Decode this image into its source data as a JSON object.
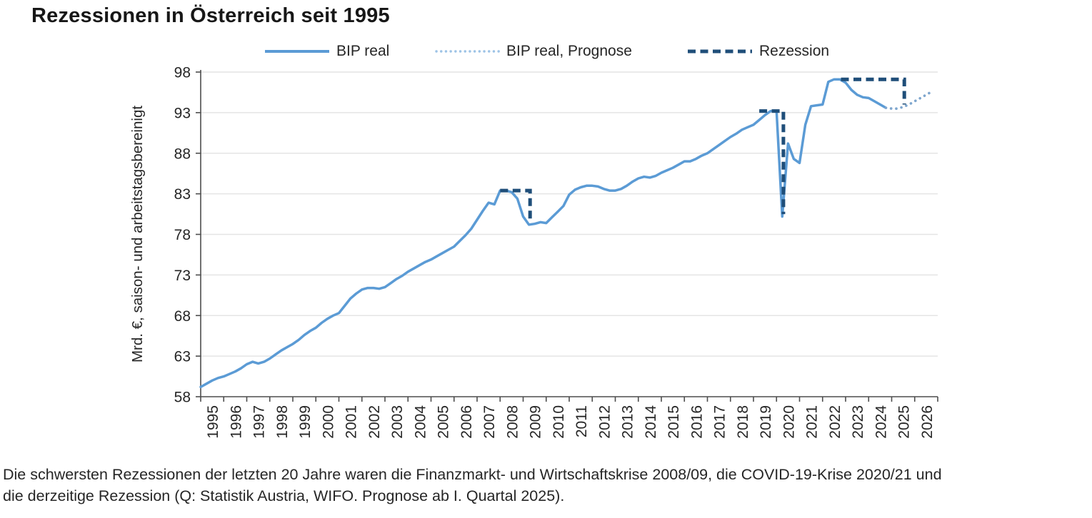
{
  "title": "Rezessionen in Österreich seit 1995",
  "legend": [
    {
      "label": "BIP real",
      "style": "solid",
      "color": "#5B9BD5"
    },
    {
      "label": "BIP real, Prognose",
      "style": "dotted",
      "color": "#7EA6CE"
    },
    {
      "label": "Rezession",
      "style": "dashed",
      "color": "#1F4E79"
    }
  ],
  "caption": {
    "line1": "Die schwersten Rezessionen der letzten 20 Jahre waren die Finanzmarkt- und Wirtschaftskrise 2008/09, die COVID-19-Krise 2020/21 und",
    "line2": "die derzeitige Rezession (Q: Statistik Austria, WIFO. Prognose ab I. Quartal 2025)."
  },
  "colors": {
    "bip_real": "#5B9BD5",
    "prognose": "#7EA6CE",
    "rezession": "#1F4E79",
    "grid": "#E4E4E4",
    "axis": "#4d4d4d",
    "text": "#262626"
  },
  "chart_data": {
    "type": "line",
    "title": "Rezessionen in Österreich seit 1995",
    "ylabel": "Mrd. €, saison- und arbeitstagsbereinigt",
    "xlabel": "",
    "ylim": [
      58,
      98
    ],
    "xlim": [
      1995,
      2027
    ],
    "grid": "horizontal",
    "legend_position": "top",
    "y_ticks": [
      58,
      63,
      68,
      73,
      78,
      83,
      88,
      93,
      98
    ],
    "x_years": [
      1995,
      1996,
      1997,
      1998,
      1999,
      2000,
      2001,
      2002,
      2003,
      2004,
      2005,
      2006,
      2007,
      2008,
      2009,
      2010,
      2011,
      2012,
      2013,
      2014,
      2015,
      2016,
      2017,
      2018,
      2019,
      2020,
      2021,
      2022,
      2023,
      2024,
      2025,
      2026
    ],
    "series": [
      {
        "name": "BIP real",
        "freq": "quarterly",
        "start_year": 1995,
        "start_quarter": 1,
        "values": [
          59.2,
          59.6,
          60.0,
          60.3,
          60.5,
          60.8,
          61.1,
          61.5,
          62.0,
          62.3,
          62.1,
          62.3,
          62.7,
          63.2,
          63.7,
          64.1,
          64.5,
          65.0,
          65.6,
          66.1,
          66.5,
          67.1,
          67.6,
          68.0,
          68.3,
          69.2,
          70.1,
          70.7,
          71.2,
          71.4,
          71.4,
          71.3,
          71.5,
          72.0,
          72.5,
          72.9,
          73.4,
          73.8,
          74.2,
          74.6,
          74.9,
          75.3,
          75.7,
          76.1,
          76.5,
          77.2,
          77.9,
          78.7,
          79.8,
          80.9,
          81.9,
          81.7,
          83.4,
          83.4,
          83.2,
          82.4,
          80.2,
          79.2,
          79.3,
          79.5,
          79.4,
          80.1,
          80.8,
          81.5,
          82.9,
          83.5,
          83.8,
          84.0,
          84.0,
          83.9,
          83.6,
          83.4,
          83.4,
          83.6,
          84.0,
          84.5,
          84.9,
          85.1,
          85.0,
          85.2,
          85.6,
          85.9,
          86.2,
          86.6,
          87.0,
          87.0,
          87.3,
          87.7,
          88.0,
          88.5,
          89.0,
          89.5,
          90.0,
          90.4,
          90.9,
          91.2,
          91.5,
          92.1,
          92.7,
          93.2,
          93.2,
          80.2,
          89.2,
          87.3,
          86.8,
          91.5,
          93.8,
          93.9,
          94.0,
          96.8,
          97.1,
          97.1,
          96.7,
          95.8,
          95.2,
          94.9,
          94.8,
          94.4,
          94.0,
          93.6
        ]
      },
      {
        "name": "BIP real, Prognose",
        "freq": "quarterly",
        "start_year": 2025,
        "start_quarter": 1,
        "values": [
          93.5,
          93.5,
          93.7,
          94.0,
          94.4,
          94.8,
          95.2,
          95.6
        ]
      }
    ],
    "recessions": [
      {
        "x_start": 2008.0,
        "x_end": 2009.3,
        "y_top": 83.4,
        "y_bottom": 79.4
      },
      {
        "x_start": 2019.25,
        "x_end": 2020.3,
        "y_top": 93.2,
        "y_bottom": 80.5
      },
      {
        "x_start": 2022.8,
        "x_end": 2025.55,
        "y_top": 97.1,
        "y_bottom": 94.0
      }
    ]
  }
}
